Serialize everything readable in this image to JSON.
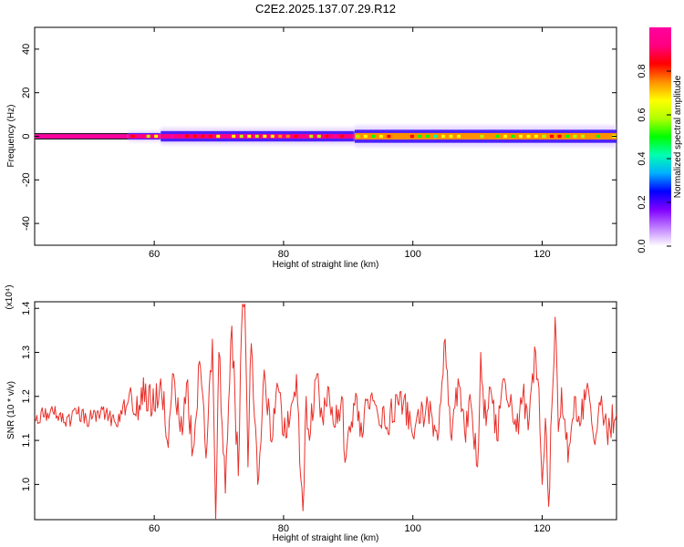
{
  "title": "C2E2.2025.137.07.29.R12",
  "chart_data": [
    {
      "type": "heatmap",
      "xlabel": "Height of straight line (km)",
      "ylabel": "Frequency (Hz)",
      "xlim": [
        41.5,
        131.5
      ],
      "ylim": [
        -50,
        50
      ],
      "xticks": [
        60,
        80,
        100,
        120
      ],
      "yticks": [
        40,
        20,
        0,
        -20,
        -40
      ],
      "colorbar": {
        "label": "Normalized spectral amplitude",
        "range": [
          0,
          1
        ],
        "ticks": [
          "0.0",
          "0.2",
          "0.4",
          "0.6",
          "0.8"
        ],
        "colors": [
          "#ffffff",
          "#c080ff",
          "#8000ff",
          "#0000ff",
          "#00b0ff",
          "#00ffb0",
          "#00ff00",
          "#b0ff00",
          "#ffff00",
          "#ff9000",
          "#ff0000",
          "#ff0080",
          "#ff00a0"
        ]
      },
      "bands": [
        {
          "x_range": [
            41.5,
            56
          ],
          "core_halfwidth_hz": 1,
          "spread_halfwidth_hz": 1.5,
          "description_level": 1.0
        },
        {
          "x_range": [
            56,
            61
          ],
          "core_halfwidth_hz": 1,
          "spread_halfwidth_hz": 2.5,
          "description_level": 0.95
        },
        {
          "x_range": [
            61,
            91
          ],
          "core_halfwidth_hz": 1,
          "spread_halfwidth_hz": 4,
          "description_level": 0.9
        },
        {
          "x_range": [
            91,
            131.5
          ],
          "core_halfwidth_hz": 1.5,
          "spread_halfwidth_hz": 5,
          "description_level": 0.75
        }
      ]
    },
    {
      "type": "line",
      "xlabel": "Height of straight line (km)",
      "ylabel": "SNR (10 * v/v)",
      "yexp": "(x10⁴)",
      "xlim": [
        41.5,
        131.5
      ],
      "ylim": [
        0.92,
        1.415
      ],
      "xticks": [
        60,
        80,
        100,
        120
      ],
      "yticks": [
        1.0,
        1.1,
        1.2,
        1.3,
        1.4
      ],
      "ytick_labels": [
        "1.0",
        "1.1",
        "1.2",
        "1.3",
        "1.4"
      ],
      "series": [
        {
          "color": "#e8302a",
          "x": [
            41.5,
            44,
            46,
            48,
            50,
            52,
            54,
            56,
            57,
            58,
            60,
            61,
            62,
            63,
            64,
            65,
            66,
            67,
            68,
            68.5,
            69,
            69.5,
            70,
            71,
            72,
            73,
            73.5,
            74,
            74.5,
            75,
            76,
            77,
            78,
            79,
            80,
            81,
            82,
            82.5,
            83,
            83.5,
            84,
            85,
            86,
            87,
            88,
            89,
            89.5,
            90,
            91,
            92,
            94,
            96,
            98,
            100,
            102,
            104,
            105,
            105.5,
            106,
            107,
            108,
            109,
            110,
            110.5,
            111,
            112,
            113,
            114,
            116,
            117,
            118,
            119,
            119.5,
            120,
            120.5,
            121,
            122,
            122.5,
            123,
            124,
            125,
            126,
            127,
            128,
            129,
            130,
            131.5
          ],
          "values": [
            1.15,
            1.17,
            1.14,
            1.16,
            1.15,
            1.17,
            1.14,
            1.19,
            1.16,
            1.22,
            1.17,
            1.24,
            1.1,
            1.25,
            1.12,
            1.23,
            1.08,
            1.28,
            1.06,
            1.22,
            1.33,
            0.92,
            1.3,
            0.98,
            1.36,
            1.02,
            1.35,
            1.41,
            1.04,
            1.32,
            1.0,
            1.26,
            1.1,
            1.23,
            1.11,
            1.15,
            1.25,
            1.05,
            0.94,
            1.2,
            1.1,
            1.24,
            1.15,
            1.22,
            1.13,
            1.2,
            1.05,
            1.12,
            1.18,
            1.14,
            1.19,
            1.13,
            1.21,
            1.11,
            1.17,
            1.12,
            1.33,
            1.18,
            1.1,
            1.24,
            1.12,
            1.18,
            1.04,
            1.3,
            1.15,
            1.22,
            1.1,
            1.24,
            1.12,
            1.2,
            1.15,
            1.3,
            1.22,
            1.0,
            1.15,
            0.95,
            1.38,
            1.12,
            1.22,
            1.05,
            1.2,
            1.14,
            1.23,
            1.1,
            1.18,
            1.12,
            1.16
          ]
        }
      ]
    }
  ]
}
